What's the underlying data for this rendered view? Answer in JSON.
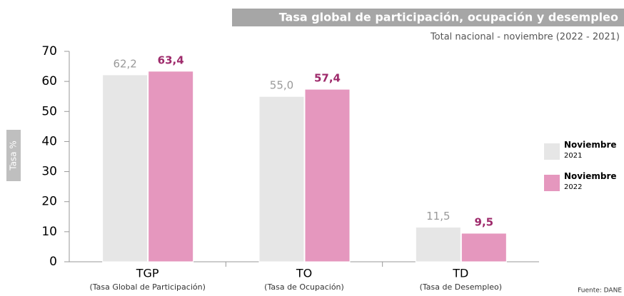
{
  "chart_data": {
    "type": "bar",
    "title": "Tasa global de participación, ocupación y desempleo",
    "subtitle": "Total nacional - noviembre (2022 - 2021)",
    "y_label": "Tasa %",
    "source": "Fuente: DANE",
    "categories": [
      "TGP",
      "TO",
      "TD"
    ],
    "category_descriptions": [
      "(Tasa Global de Participación)",
      "(Tasa de Ocupación)",
      "(Tasa de Desempleo)"
    ],
    "series": [
      {
        "name": "Noviembre 2021",
        "color": "#e6e6e6",
        "label_color": "#999999",
        "values": [
          62.2,
          55.0,
          11.5
        ],
        "value_labels": [
          "62,2",
          "55,0",
          "11,5"
        ]
      },
      {
        "name": "Noviembre 2022",
        "color": "#e597be",
        "label_color": "#9e2a6b",
        "values": [
          63.4,
          57.4,
          9.5
        ],
        "value_labels": [
          "63,4",
          "57,4",
          "9,5"
        ]
      }
    ],
    "ylim": [
      0,
      70
    ],
    "yticks": [
      0,
      10,
      20,
      30,
      40,
      50,
      60,
      70
    ]
  }
}
